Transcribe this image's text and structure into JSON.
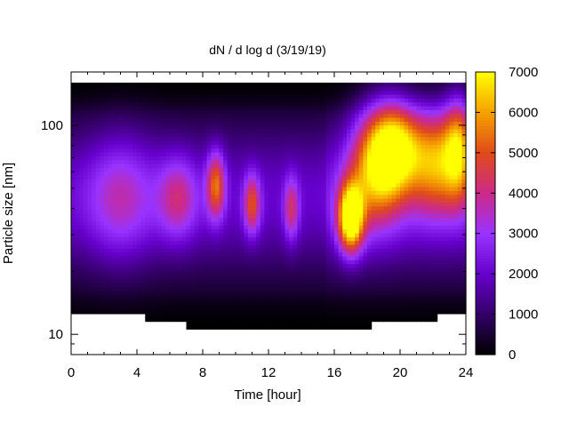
{
  "chart_data": {
    "type": "heatmap",
    "title": "dN / d log d (3/19/19)",
    "xlabel": "Time [hour]",
    "ylabel": "Particle size [nm]",
    "xlim": [
      0,
      24
    ],
    "ylim": [
      8,
      180
    ],
    "yscale": "log",
    "x_ticks": [
      0,
      4,
      8,
      12,
      16,
      20,
      24
    ],
    "x_tick_labels": [
      "0",
      "4",
      "8",
      "12",
      "16",
      "20",
      "24"
    ],
    "y_ticks": [
      10,
      100
    ],
    "y_tick_labels": [
      "10",
      "100"
    ],
    "colorbar": {
      "min": 0,
      "max": 7000,
      "ticks": [
        0,
        1000,
        2000,
        3000,
        4000,
        5000,
        6000,
        7000
      ],
      "tick_labels": [
        "0",
        "1000",
        "2000",
        "3000",
        "4000",
        "5000",
        "6000",
        "7000"
      ],
      "colormap": [
        "#000000",
        "#330066",
        "#6600cc",
        "#9933ff",
        "#cc2a8a",
        "#e04a1a",
        "#f5a000",
        "#ffff00"
      ]
    },
    "grid": false,
    "size_range_nm": [
      10.5,
      160
    ],
    "lower_cutoff_nm": [
      {
        "from": 0.0,
        "to": 4.6,
        "value": 12.3
      },
      {
        "from": 4.6,
        "to": 7.1,
        "value": 11.3
      },
      {
        "from": 7.1,
        "to": 18.2,
        "value": 10.6
      },
      {
        "from": 18.2,
        "to": 22.3,
        "value": 11.3
      },
      {
        "from": 22.3,
        "to": 24.0,
        "value": 12.3
      }
    ],
    "features": [
      {
        "time": 8.8,
        "size": 52,
        "value": 3600,
        "dt": 0.55,
        "dlogd": 0.16
      },
      {
        "time": 11.0,
        "size": 42,
        "value": 3100,
        "dt": 0.5,
        "dlogd": 0.14
      },
      {
        "time": 13.4,
        "size": 40,
        "value": 2400,
        "dt": 0.45,
        "dlogd": 0.15
      },
      {
        "time": 17.0,
        "size": 36,
        "value": 6400,
        "dt": 0.75,
        "dlogd": 0.16
      },
      {
        "time": 18.5,
        "size": 65,
        "value": 4200,
        "dt": 1.6,
        "dlogd": 0.28
      },
      {
        "time": 19.8,
        "size": 80,
        "value": 4700,
        "dt": 1.5,
        "dlogd": 0.22
      },
      {
        "time": 22.2,
        "size": 70,
        "value": 4100,
        "dt": 1.6,
        "dlogd": 0.25
      },
      {
        "time": 23.6,
        "size": 80,
        "value": 3900,
        "dt": 0.9,
        "dlogd": 0.25
      },
      {
        "time": 6.5,
        "size": 45,
        "value": 2100,
        "dt": 1.2,
        "dlogd": 0.2
      },
      {
        "time": 3.0,
        "size": 45,
        "value": 1700,
        "dt": 2.0,
        "dlogd": 0.3
      }
    ]
  }
}
